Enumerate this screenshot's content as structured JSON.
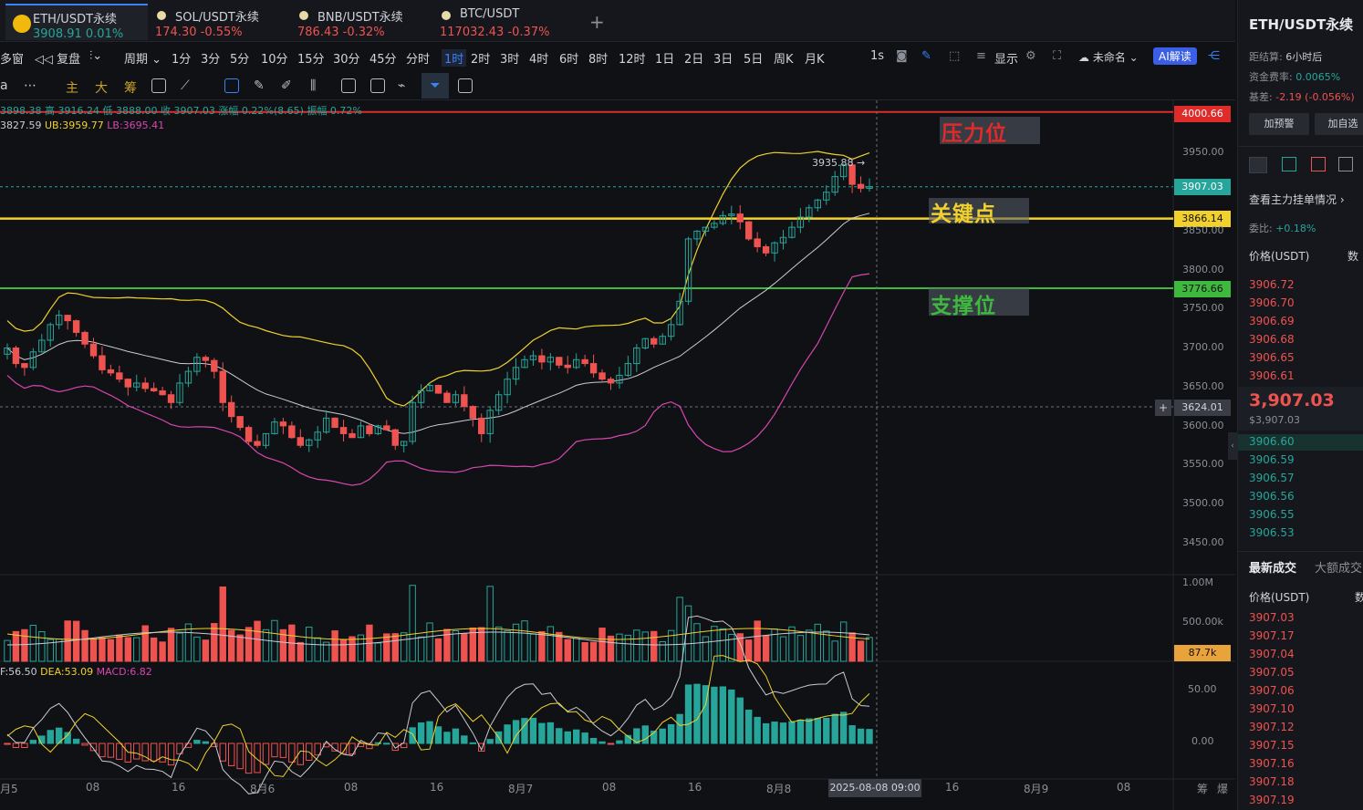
{
  "tabs": [
    {
      "name": "ETH/USDT永续",
      "price": "3908.91",
      "change": "0.01%",
      "dir": "up"
    },
    {
      "name": "SOL/USDT永续",
      "price": "174.30",
      "change": "-0.55%",
      "dir": "down"
    },
    {
      "name": "BNB/USDT永续",
      "price": "786.43",
      "change": "-0.32%",
      "dir": "down"
    },
    {
      "name": "BTC/USDT",
      "price": "117032.43",
      "change": "-0.37%",
      "dir": "down"
    }
  ],
  "periods": {
    "left": [
      "多窗",
      "复盘",
      "周期"
    ],
    "items": [
      "1分",
      "3分",
      "5分",
      "10分",
      "15分",
      "30分",
      "45分",
      "分时",
      "1时",
      "2时",
      "3时",
      "4时",
      "6时",
      "8时",
      "12时",
      "1日",
      "2日",
      "3日",
      "5日",
      "周K",
      "月K"
    ],
    "selected": "1时",
    "right": [
      "1s",
      "显示",
      "未命名",
      "AI解读"
    ]
  },
  "toolbar2": [
    "a",
    "主",
    "大",
    "筹"
  ],
  "ohlc_line": "3898.38 高 3916.24 低 3888.00 收 3907.03 涨幅 0.22%(8.65) 振幅 0.72%",
  "boll_line": {
    "mid": "3827.59",
    "ub": "UB:3959.77",
    "lb": "LB:3695.41"
  },
  "macd_line": {
    "dif": "F:56.50",
    "dea": "DEA:53.09",
    "macd": "MACD:6.82"
  },
  "annotations": {
    "resistance": {
      "label": "压力位",
      "price": "4000.66"
    },
    "key": {
      "label": "关键点",
      "price": "3866.14"
    },
    "support": {
      "label": "支撑位",
      "price": "3776.66"
    }
  },
  "last_price_badge": "3907.03",
  "cursor_price_badge": "3624.01",
  "volume_badge": "87.7k",
  "high_marker": "3935.88 →",
  "price_axis": [
    "3950.00",
    "3850.00",
    "3800.00",
    "3750.00",
    "3700.00",
    "3650.00",
    "3600.00",
    "3550.00",
    "3500.00",
    "3450.00"
  ],
  "volume_axis": [
    "1.00M",
    "500.00k"
  ],
  "macd_axis": [
    "50.00",
    "0.00"
  ],
  "x_axis": [
    "月5",
    "08",
    "16",
    "8月6",
    "08",
    "16",
    "8月7",
    "08",
    "16",
    "8月8",
    "16",
    "8月9",
    "08"
  ],
  "x_cursor": "2025-08-08 09:00",
  "x_right": [
    "筹",
    "爆"
  ],
  "right_panel": {
    "title": "ETH/USDT永续",
    "settle_label": "距结算:",
    "settle_value": "6小时后",
    "funding_label": "资金费率:",
    "funding_value": "0.0065%",
    "basis_label": "基差:",
    "basis_value": "-2.19 (-0.056%)",
    "btn_alert": "加预警",
    "btn_fav": "加自选",
    "depth_link": "查看主力挂单情况",
    "ratio_label": "委比:",
    "ratio_value": "+0.18%",
    "col_price": "价格(USDT)",
    "col_qty": "数",
    "asks": [
      "3906.72",
      "3906.70",
      "3906.69",
      "3906.68",
      "3906.65",
      "3906.61"
    ],
    "mid_price": "3,907.03",
    "mid_sub": "$3,907.03",
    "bids": [
      "3906.60",
      "3906.59",
      "3906.57",
      "3906.56",
      "3906.55",
      "3906.53"
    ],
    "trades_tab": "最新成交",
    "trades_tab2": "大额成交",
    "trades_col": "价格(USDT)",
    "trades_col2": "数",
    "trades": [
      "3907.03",
      "3907.17",
      "3907.04",
      "3907.05",
      "3907.06",
      "3907.10",
      "3907.12",
      "3907.15",
      "3907.16",
      "3907.18",
      "3907.19"
    ]
  },
  "chart_data": {
    "type": "candlestick",
    "interval": "1时",
    "price_axis": [
      3450,
      3500,
      3550,
      3600,
      3650,
      3700,
      3750,
      3800,
      3850,
      3950
    ],
    "horizontal_levels": [
      4000.66,
      3866.14,
      3776.66
    ],
    "last_close": 3907.03,
    "boll": {
      "mid": 3827.59,
      "ub": 3959.77,
      "lb": 3695.41
    },
    "macd": {
      "dif": 56.5,
      "dea": 53.09,
      "macd": 6.82
    },
    "closes": [
      3700,
      3680,
      3675,
      3695,
      3710,
      3730,
      3742,
      3735,
      3720,
      3705,
      3690,
      3672,
      3668,
      3660,
      3650,
      3655,
      3648,
      3645,
      3640,
      3630,
      3655,
      3670,
      3688,
      3684,
      3670,
      3630,
      3612,
      3598,
      3580,
      3575,
      3590,
      3605,
      3600,
      3585,
      3575,
      3582,
      3592,
      3610,
      3598,
      3590,
      3585,
      3600,
      3590,
      3600,
      3595,
      3575,
      3580,
      3630,
      3645,
      3652,
      3642,
      3630,
      3640,
      3625,
      3610,
      3590,
      3620,
      3640,
      3660,
      3675,
      3685,
      3690,
      3682,
      3688,
      3678,
      3675,
      3685,
      3680,
      3668,
      3660,
      3655,
      3665,
      3680,
      3700,
      3712,
      3705,
      3715,
      3730,
      3760,
      3840,
      3850,
      3855,
      3860,
      3870,
      3872,
      3862,
      3840,
      3830,
      3822,
      3835,
      3842,
      3855,
      3868,
      3880,
      3890,
      3900,
      3920,
      3935,
      3910,
      3905,
      3907
    ],
    "volume_axis": [
      "500k",
      "1.00M"
    ],
    "macd_axis": [
      0,
      50
    ]
  }
}
